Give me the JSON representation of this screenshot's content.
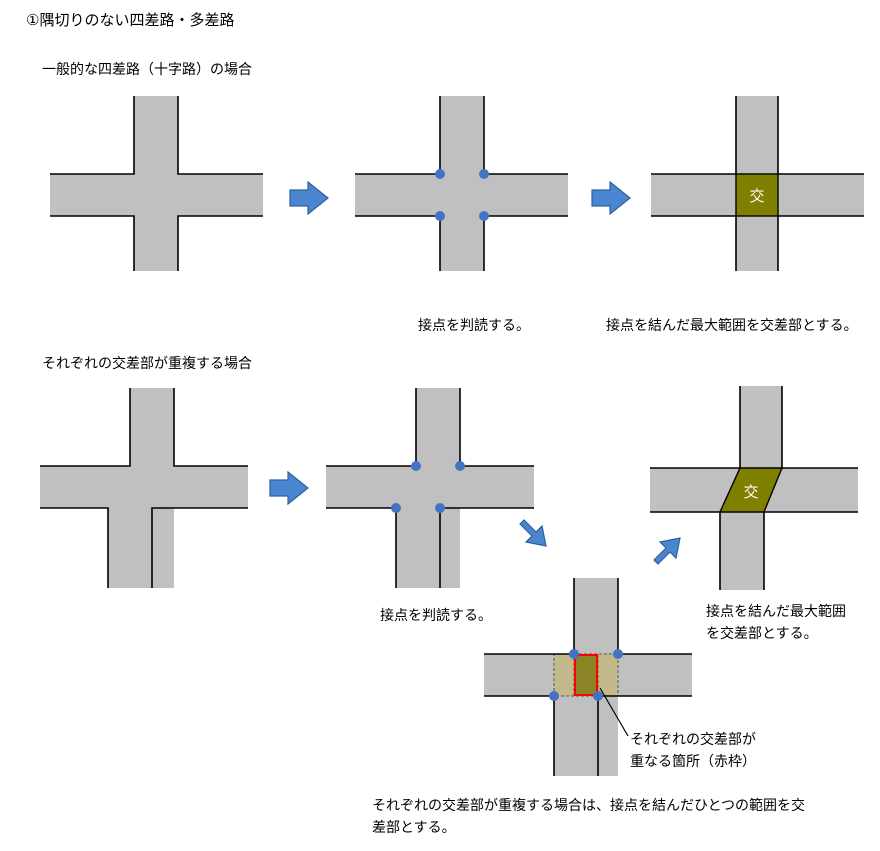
{
  "heading": "①隅切りのない四差路・多差路",
  "section1": {
    "title": "一般的な四差路（十字路）の場合",
    "caption_points": "接点を判読する。",
    "caption_result": "接点を結んだ最大範囲を交差部とする。"
  },
  "section2": {
    "title": "それぞれの交差部が重複する場合",
    "caption_points": "接点を判読する。",
    "caption_result_line1": "接点を結んだ最大範囲",
    "caption_result_line2": "を交差部とする。",
    "overlap_note_line1": "それぞれの交差部が",
    "overlap_note_line2": "重なる箇所（赤枠）",
    "conclusion_line1": "それぞれの交差部が重複する場合は、接点を結んだひとつの範囲を交",
    "conclusion_line2": "差部とする。"
  },
  "intersection_label": "交",
  "colors": {
    "road": "#c0c0c0",
    "edge": "#000000",
    "contact_point": "#4472c4",
    "intersection_fill": "#808000",
    "overlap_fill": "#c4b98a",
    "overlap_frame": "#ff0000",
    "arrow_fill": "#4a86cf",
    "arrow_edge": "#2e5f9e",
    "label_text": "#ffffff"
  }
}
